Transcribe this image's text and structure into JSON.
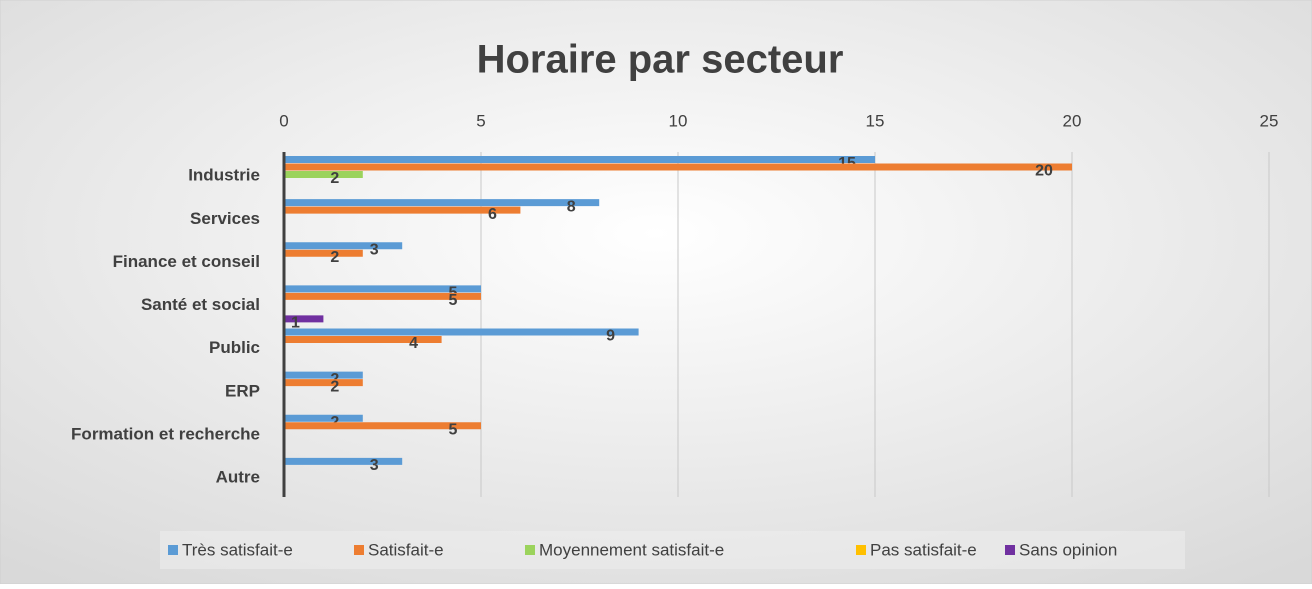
{
  "chart_data": {
    "type": "bar",
    "orientation": "horizontal",
    "title": "Horaire par secteur",
    "categories": [
      "Industrie",
      "Services",
      "Finance et conseil",
      "Santé et social",
      "Public",
      "ERP",
      "Formation et recherche",
      "Autre"
    ],
    "series": [
      {
        "name": "Très satisfait-e",
        "color": "#5b9bd5",
        "values": [
          15,
          8,
          3,
          5,
          9,
          2,
          2,
          3
        ]
      },
      {
        "name": "Satisfait-e",
        "color": "#ed7d31",
        "values": [
          20,
          6,
          2,
          5,
          4,
          2,
          5,
          null
        ]
      },
      {
        "name": "Moyennement satisfait-e",
        "color": "#9bd35c",
        "values": [
          2,
          null,
          null,
          null,
          null,
          null,
          null,
          null
        ]
      },
      {
        "name": "Pas satisfait-e",
        "color": "#ffc000",
        "values": [
          null,
          null,
          null,
          null,
          null,
          null,
          null,
          null
        ]
      },
      {
        "name": "Sans opinion",
        "color": "#7030a0",
        "values": [
          null,
          null,
          null,
          1,
          null,
          null,
          null,
          null
        ]
      }
    ],
    "xlim": [
      0,
      25
    ],
    "xticks": [
      0,
      5,
      10,
      15,
      20,
      25
    ],
    "grid": true,
    "legend": "bottom"
  }
}
